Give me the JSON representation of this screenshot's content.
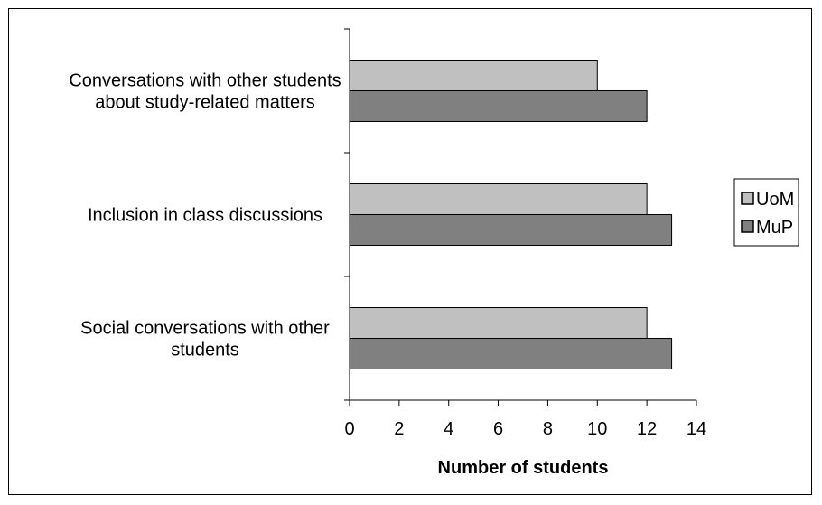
{
  "chart_data": {
    "type": "bar",
    "orientation": "horizontal",
    "categories": [
      [
        "Conversations with other students",
        "about study-related matters"
      ],
      [
        "Inclusion in class discussions"
      ],
      [
        "Social conversations with other",
        "students"
      ]
    ],
    "series": [
      {
        "name": "UoM",
        "values": [
          10,
          12,
          12
        ],
        "color": "#c0c0c0"
      },
      {
        "name": "MuP",
        "values": [
          12,
          13,
          13
        ],
        "color": "#808080"
      }
    ],
    "xlabel": "Number of students",
    "ylabel": "",
    "xlim": [
      0,
      14
    ],
    "xticks": [
      0,
      2,
      4,
      6,
      8,
      10,
      12,
      14
    ],
    "grid": false,
    "legend_position": "right"
  }
}
